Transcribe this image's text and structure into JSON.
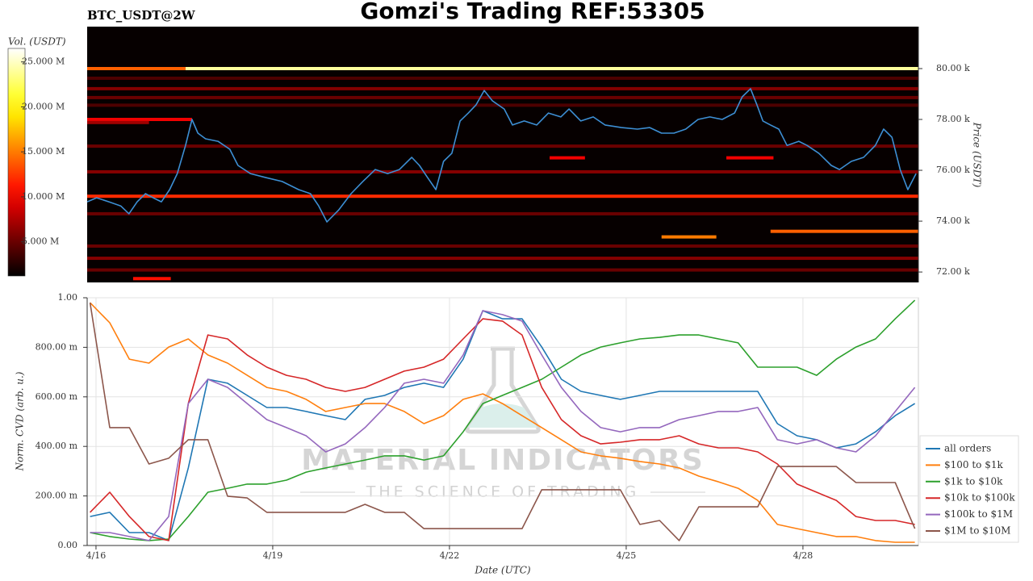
{
  "chart_data": [
    {
      "type": "heatmap",
      "title": "Gomzi's Trading REF:53305",
      "subtitle": "BTC_USDT@2W",
      "ylabel": "Price (USDT)",
      "colorbar_label": "Vol. (USDT)",
      "colormap": "hot",
      "clim": [
        1200000,
        26500000
      ],
      "colorbar_ticks": [
        {
          "value": 5000000,
          "label": "5.000 M"
        },
        {
          "value": 10000000,
          "label": "10.000 M"
        },
        {
          "value": 15000000,
          "label": "15.000 M"
        },
        {
          "value": 20000000,
          "label": "20.000 M"
        },
        {
          "value": 25000000,
          "label": "25.000 M"
        }
      ],
      "xlim": [
        -0.15,
        13.96
      ],
      "ylim": [
        71590,
        81650
      ],
      "yticks": [
        {
          "value": 72000,
          "label": "72.00 k"
        },
        {
          "value": 74000,
          "label": "74.00 k"
        },
        {
          "value": 76000,
          "label": "76.00 k"
        },
        {
          "value": 78000,
          "label": "78.00 k"
        },
        {
          "value": 80000,
          "label": "80.00 k"
        }
      ],
      "levels": {
        "price": [
          80000,
          80000,
          79620,
          79210,
          78860,
          78560,
          78000,
          77880,
          76950,
          76490,
          76490,
          75940,
          74980,
          74290,
          73600,
          73380,
          73020,
          72540,
          72080,
          71740
        ],
        "volume": [
          14000000,
          24000000,
          4000000,
          6000000,
          5000000,
          4000000,
          10000000,
          7000000,
          5000000,
          10000000,
          10000000,
          6000000,
          12000000,
          5000000,
          14000000,
          15000000,
          5000000,
          6000000,
          5000000,
          11000000
        ],
        "start": [
          -0.15,
          1.52,
          -0.15,
          -0.15,
          -0.15,
          -0.15,
          -0.15,
          -0.15,
          -0.15,
          7.7,
          10.7,
          -0.15,
          -0.15,
          -0.15,
          11.45,
          9.6,
          -0.15,
          -0.15,
          -0.15,
          0.63
        ],
        "end": [
          1.52,
          13.96,
          13.96,
          13.96,
          13.96,
          13.96,
          1.63,
          0.9,
          13.96,
          8.3,
          11.5,
          13.96,
          13.96,
          13.96,
          13.96,
          10.53,
          13.96,
          13.96,
          13.96,
          1.27
        ]
      },
      "series": [
        {
          "color": "#3d8fd4",
          "x": [
            -0.15,
            0.01,
            0.22,
            0.42,
            0.56,
            0.7,
            0.84,
            0.97,
            1.11,
            1.25,
            1.38,
            1.52,
            1.63,
            1.73,
            1.86,
            2.07,
            2.27,
            2.41,
            2.62,
            2.89,
            3.16,
            3.44,
            3.64,
            3.78,
            3.92,
            4.12,
            4.33,
            4.53,
            4.74,
            4.95,
            5.15,
            5.36,
            5.49,
            5.63,
            5.77,
            5.9,
            6.04,
            6.18,
            6.32,
            6.45,
            6.59,
            6.73,
            6.93,
            7.07,
            7.27,
            7.48,
            7.68,
            7.89,
            8.03,
            8.23,
            8.44,
            8.64,
            8.92,
            9.19,
            9.4,
            9.6,
            9.81,
            10.01,
            10.22,
            10.42,
            10.63,
            10.84,
            10.97,
            11.11,
            11.22,
            11.32,
            11.45,
            11.59,
            11.73,
            11.93,
            12.07,
            12.27,
            12.48,
            12.62,
            12.82,
            13.03,
            13.23,
            13.37,
            13.51,
            13.65,
            13.78,
            13.92
          ],
          "values": [
            74760,
            74920,
            74760,
            74600,
            74290,
            74760,
            75080,
            74920,
            74760,
            75240,
            75870,
            76980,
            78000,
            77460,
            77240,
            77140,
            76830,
            76190,
            75870,
            75710,
            75560,
            75240,
            75080,
            74600,
            73970,
            74440,
            75080,
            75560,
            76030,
            75870,
            76030,
            76510,
            76190,
            75710,
            75240,
            76350,
            76670,
            77940,
            78250,
            78570,
            79140,
            78730,
            78410,
            77780,
            77940,
            77780,
            78250,
            78100,
            78410,
            77940,
            78100,
            77780,
            77680,
            77620,
            77680,
            77460,
            77460,
            77620,
            78000,
            78100,
            78000,
            78250,
            78890,
            79210,
            78570,
            77940,
            77780,
            77620,
            76980,
            77140,
            76980,
            76670,
            76190,
            76030,
            76350,
            76510,
            76980,
            77620,
            77300,
            76030,
            75240,
            75870
          ]
        }
      ]
    },
    {
      "type": "line",
      "xlabel": "Date (UTC)",
      "ylabel": "Norm. CVD (arb. u.)",
      "watermark": [
        "MATERIAL INDICATORS",
        "THE SCIENCE OF TRADING"
      ],
      "grid": true,
      "legend": "right",
      "xlim": [
        -0.15,
        13.96
      ],
      "xticks": [
        {
          "value": 0,
          "label": "4/16"
        },
        {
          "value": 3,
          "label": "4/19"
        },
        {
          "value": 6,
          "label": "4/22"
        },
        {
          "value": 9,
          "label": "4/25"
        },
        {
          "value": 12,
          "label": "4/28"
        }
      ],
      "ylim": [
        0,
        1
      ],
      "yticks": [
        {
          "value": 0,
          "label": "0.00"
        },
        {
          "value": 0.2,
          "label": "200.00 m"
        },
        {
          "value": 0.4,
          "label": "400.00 m"
        },
        {
          "value": 0.6,
          "label": "600.00 m"
        },
        {
          "value": 0.8,
          "label": "800.00 m"
        },
        {
          "value": 1,
          "label": "1.00"
        }
      ],
      "x": [
        -0.1,
        0.233,
        0.567,
        0.9,
        1.233,
        1.567,
        1.9,
        2.233,
        2.567,
        2.9,
        3.233,
        3.567,
        3.9,
        4.233,
        4.567,
        4.9,
        5.233,
        5.567,
        5.9,
        6.233,
        6.567,
        6.9,
        7.233,
        7.567,
        7.9,
        8.233,
        8.567,
        8.9,
        9.233,
        9.567,
        9.9,
        10.233,
        10.567,
        10.9,
        11.233,
        11.567,
        11.9,
        12.233,
        12.567,
        12.9,
        13.233,
        13.567,
        13.9
      ],
      "series": [
        {
          "name": "all orders",
          "color": "#1f77b4",
          "values": [
            0.117,
            0.134,
            0.052,
            0.052,
            0.02,
            0.313,
            0.671,
            0.655,
            0.606,
            0.557,
            0.557,
            0.541,
            0.524,
            0.508,
            0.59,
            0.606,
            0.638,
            0.655,
            0.638,
            0.752,
            0.948,
            0.915,
            0.915,
            0.801,
            0.671,
            0.622,
            0.606,
            0.59,
            0.606,
            0.622,
            0.622,
            0.622,
            0.622,
            0.622,
            0.622,
            0.492,
            0.443,
            0.427,
            0.394,
            0.41,
            0.459,
            0.524,
            0.573
          ]
        },
        {
          "name": "$100 to $1k",
          "color": "#ff7f0e",
          "values": [
            0.98,
            0.899,
            0.752,
            0.736,
            0.801,
            0.834,
            0.769,
            0.736,
            0.687,
            0.638,
            0.622,
            0.59,
            0.541,
            0.557,
            0.573,
            0.573,
            0.541,
            0.492,
            0.524,
            0.59,
            0.612,
            0.573,
            0.524,
            0.476,
            0.427,
            0.378,
            0.362,
            0.352,
            0.339,
            0.329,
            0.313,
            0.28,
            0.257,
            0.231,
            0.182,
            0.085,
            0.068,
            0.052,
            0.036,
            0.036,
            0.02,
            0.013,
            0.013
          ]
        },
        {
          "name": "$1k to $10k",
          "color": "#2ca02c",
          "values": [
            0.052,
            0.036,
            0.026,
            0.02,
            0.026,
            0.117,
            0.215,
            0.231,
            0.248,
            0.248,
            0.264,
            0.296,
            0.313,
            0.329,
            0.345,
            0.362,
            0.362,
            0.345,
            0.362,
            0.459,
            0.573,
            0.606,
            0.638,
            0.671,
            0.72,
            0.769,
            0.801,
            0.818,
            0.834,
            0.84,
            0.85,
            0.85,
            0.834,
            0.818,
            0.72,
            0.72,
            0.72,
            0.687,
            0.752,
            0.801,
            0.834,
            0.915,
            0.99
          ]
        },
        {
          "name": "$10k to $100k",
          "color": "#d62728",
          "values": [
            0.134,
            0.215,
            0.117,
            0.036,
            0.02,
            0.573,
            0.85,
            0.834,
            0.769,
            0.72,
            0.687,
            0.671,
            0.638,
            0.622,
            0.638,
            0.671,
            0.704,
            0.72,
            0.752,
            0.834,
            0.915,
            0.906,
            0.85,
            0.638,
            0.508,
            0.443,
            0.41,
            0.417,
            0.427,
            0.427,
            0.443,
            0.41,
            0.394,
            0.394,
            0.378,
            0.329,
            0.248,
            0.215,
            0.182,
            0.117,
            0.101,
            0.101,
            0.085
          ]
        },
        {
          "name": "$100k to $1M",
          "color": "#9467bd",
          "values": [
            0.052,
            0.052,
            0.036,
            0.02,
            0.117,
            0.573,
            0.671,
            0.638,
            0.573,
            0.508,
            0.476,
            0.443,
            0.378,
            0.41,
            0.476,
            0.557,
            0.655,
            0.671,
            0.655,
            0.769,
            0.948,
            0.932,
            0.906,
            0.769,
            0.638,
            0.541,
            0.476,
            0.459,
            0.476,
            0.476,
            0.508,
            0.524,
            0.541,
            0.541,
            0.557,
            0.427,
            0.41,
            0.427,
            0.394,
            0.378,
            0.443,
            0.541,
            0.638
          ]
        },
        {
          "name": "$1M to $10M",
          "color": "#8c564b",
          "values": [
            0.98,
            0.476,
            0.476,
            0.329,
            0.352,
            0.427,
            0.427,
            0.199,
            0.192,
            0.134,
            0.134,
            0.134,
            0.134,
            0.134,
            0.166,
            0.134,
            0.134,
            0.068,
            0.068,
            0.068,
            0.068,
            0.068,
            0.068,
            0.225,
            0.225,
            0.225,
            0.225,
            0.225,
            0.085,
            0.101,
            0.02,
            0.156,
            0.156,
            0.156,
            0.156,
            0.319,
            0.319,
            0.319,
            0.319,
            0.254,
            0.254,
            0.254,
            0.068
          ]
        }
      ]
    }
  ]
}
